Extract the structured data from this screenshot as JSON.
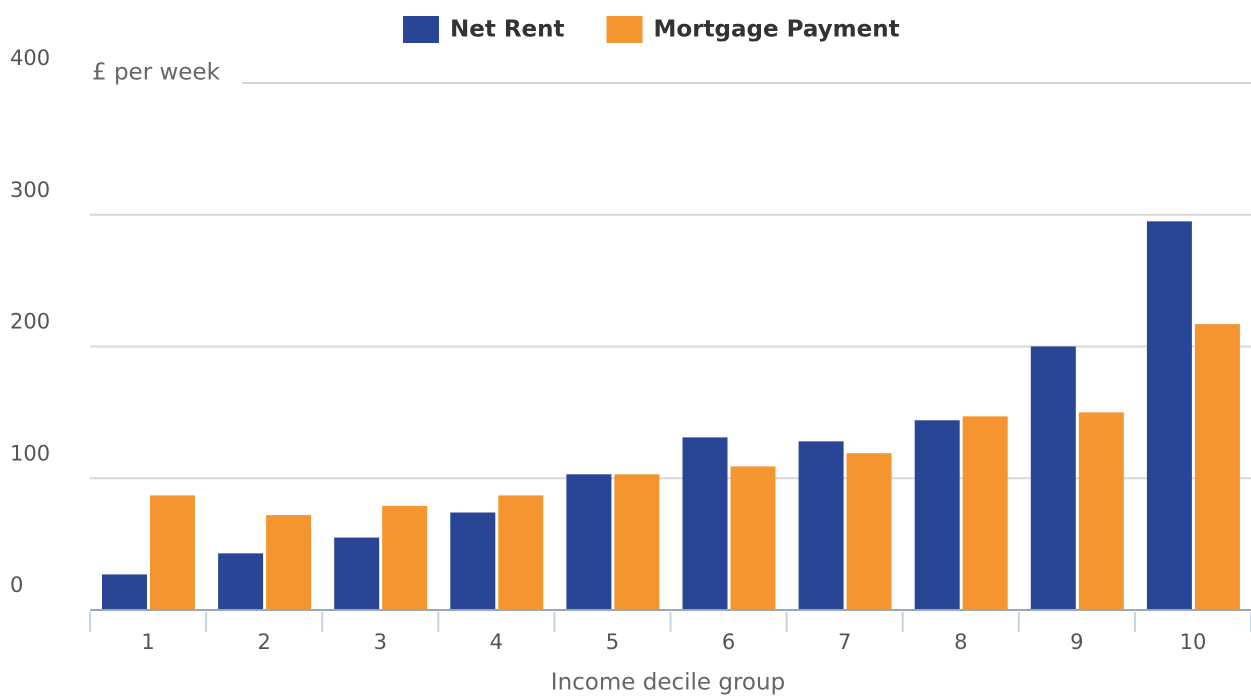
{
  "chart_data": {
    "type": "bar",
    "x_label": "Income decile group",
    "y_label": "£ per week",
    "categories": [
      "1",
      "2",
      "3",
      "4",
      "5",
      "6",
      "7",
      "8",
      "9",
      "10"
    ],
    "series": [
      {
        "name": "Net Rent",
        "color": "#284596",
        "values": [
          27,
          43,
          55,
          74,
          103,
          131,
          128,
          144,
          200,
          295
        ]
      },
      {
        "name": "Mortgage Payment",
        "color": "#f59530",
        "values": [
          87,
          72,
          79,
          87,
          103,
          109,
          119,
          147,
          150,
          217
        ]
      }
    ],
    "ylim": [
      0,
      400
    ],
    "yticks": [
      0,
      100,
      200,
      300,
      400
    ],
    "grid": true,
    "legend": "top"
  }
}
